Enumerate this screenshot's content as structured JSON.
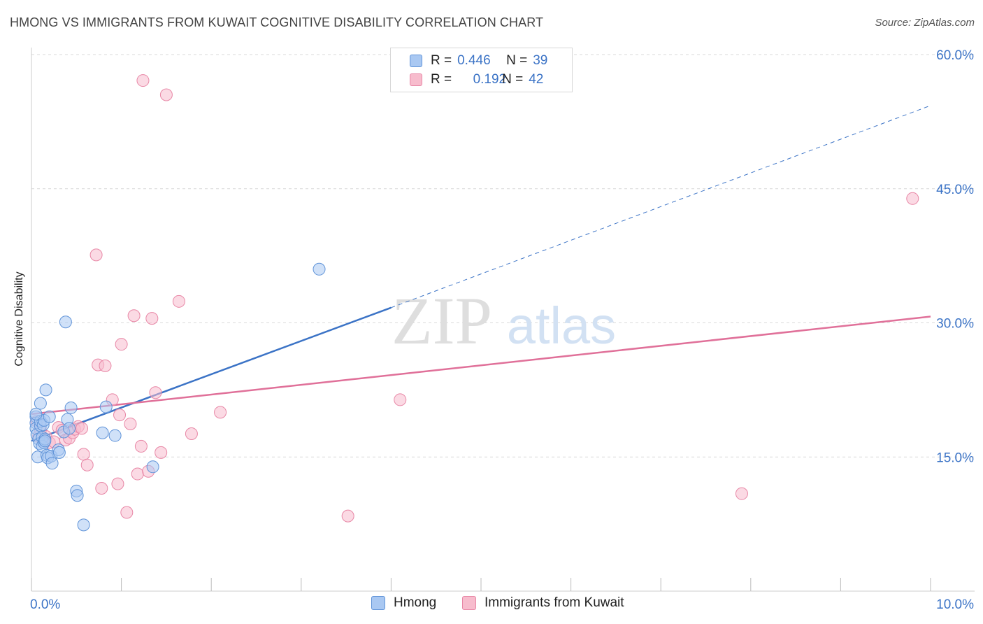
{
  "title": "HMONG VS IMMIGRANTS FROM KUWAIT COGNITIVE DISABILITY CORRELATION CHART",
  "source": "Source: ZipAtlas.com",
  "watermark": {
    "zip": "ZIP",
    "atlas": "atlas"
  },
  "legend": {
    "rows": [
      {
        "r_label": "R =",
        "r_value": "0.446",
        "n_label": "N =",
        "n_value": "39"
      },
      {
        "r_label": "R =",
        "r_value": "0.192",
        "n_label": "N =",
        "n_value": "42"
      }
    ]
  },
  "bottom_legend": [
    "Hmong",
    "Immigrants from Kuwait"
  ],
  "colors": {
    "hmong_fill": "#a9c8f2",
    "hmong_stroke": "#5f93d8",
    "hmong_line": "#3b73c6",
    "kuwait_fill": "#f7bccd",
    "kuwait_stroke": "#e887a6",
    "kuwait_line": "#e07099",
    "axis_text": "#3b73c6",
    "grid": "#d9d9d9"
  },
  "chart_data": {
    "type": "scatter",
    "title": "HMONG VS IMMIGRANTS FROM KUWAIT COGNITIVE DISABILITY CORRELATION CHART",
    "xlabel": "",
    "ylabel": "Cognitive Disability",
    "xlim": [
      0,
      10
    ],
    "ylim": [
      0,
      60
    ],
    "x_tick_labels": [
      "0.0%",
      "10.0%"
    ],
    "y_tick_labels": [
      "15.0%",
      "30.0%",
      "45.0%",
      "60.0%"
    ],
    "y_ticks": [
      15,
      30,
      45,
      60
    ],
    "grid": true,
    "legend_position": "top-center",
    "series": [
      {
        "name": "Hmong",
        "points": [
          [
            0.05,
            19.5
          ],
          [
            0.05,
            18.8
          ],
          [
            0.05,
            18.2
          ],
          [
            0.06,
            17.5
          ],
          [
            0.07,
            15.0
          ],
          [
            0.08,
            17.0
          ],
          [
            0.09,
            16.5
          ],
          [
            0.1,
            18.5
          ],
          [
            0.1,
            19.0
          ],
          [
            0.1,
            21.0
          ],
          [
            0.12,
            17.2
          ],
          [
            0.12,
            16.2
          ],
          [
            0.13,
            18.6
          ],
          [
            0.14,
            19.1
          ],
          [
            0.14,
            16.6
          ],
          [
            0.15,
            17.0
          ],
          [
            0.15,
            16.8
          ],
          [
            0.16,
            22.5
          ],
          [
            0.17,
            15.2
          ],
          [
            0.18,
            14.9
          ],
          [
            0.2,
            19.5
          ],
          [
            0.22,
            15.1
          ],
          [
            0.23,
            14.3
          ],
          [
            0.3,
            15.8
          ],
          [
            0.31,
            15.5
          ],
          [
            0.36,
            17.8
          ],
          [
            0.38,
            30.1
          ],
          [
            0.4,
            19.2
          ],
          [
            0.42,
            18.2
          ],
          [
            0.44,
            20.5
          ],
          [
            0.5,
            11.2
          ],
          [
            0.51,
            10.7
          ],
          [
            0.58,
            7.4
          ],
          [
            0.79,
            17.7
          ],
          [
            0.83,
            20.6
          ],
          [
            0.93,
            17.4
          ],
          [
            1.35,
            13.9
          ],
          [
            3.2,
            36.0
          ],
          [
            0.05,
            19.8
          ]
        ],
        "trend": {
          "x": [
            0.0,
            4.0
          ],
          "y": [
            16.8,
            31.7
          ],
          "extended_to": [
            10.0,
            54.3
          ]
        }
      },
      {
        "name": "Immigrants from Kuwait",
        "points": [
          [
            0.06,
            19.0
          ],
          [
            0.08,
            17.3
          ],
          [
            0.1,
            18.0
          ],
          [
            0.16,
            17.3
          ],
          [
            0.2,
            16.6
          ],
          [
            0.25,
            16.7
          ],
          [
            0.3,
            18.3
          ],
          [
            0.34,
            18.0
          ],
          [
            0.38,
            16.9
          ],
          [
            0.42,
            17.1
          ],
          [
            0.46,
            17.7
          ],
          [
            0.48,
            18.1
          ],
          [
            0.52,
            18.4
          ],
          [
            0.56,
            18.2
          ],
          [
            0.58,
            15.3
          ],
          [
            0.62,
            14.1
          ],
          [
            0.72,
            37.6
          ],
          [
            0.74,
            25.3
          ],
          [
            0.78,
            11.5
          ],
          [
            0.82,
            25.2
          ],
          [
            0.9,
            21.4
          ],
          [
            0.96,
            12.0
          ],
          [
            0.98,
            19.7
          ],
          [
            1.0,
            27.6
          ],
          [
            1.06,
            8.8
          ],
          [
            1.1,
            18.7
          ],
          [
            1.14,
            30.8
          ],
          [
            1.18,
            13.1
          ],
          [
            1.22,
            16.2
          ],
          [
            1.24,
            57.1
          ],
          [
            1.3,
            13.4
          ],
          [
            1.34,
            30.5
          ],
          [
            1.38,
            22.2
          ],
          [
            1.44,
            15.5
          ],
          [
            1.5,
            55.5
          ],
          [
            1.64,
            32.4
          ],
          [
            1.78,
            17.6
          ],
          [
            2.1,
            20.0
          ],
          [
            3.52,
            8.4
          ],
          [
            4.1,
            21.4
          ],
          [
            7.9,
            10.9
          ],
          [
            9.8,
            43.9
          ]
        ],
        "trend": {
          "x": [
            0.0,
            10.0
          ],
          "y": [
            19.8,
            30.7
          ]
        }
      }
    ]
  }
}
